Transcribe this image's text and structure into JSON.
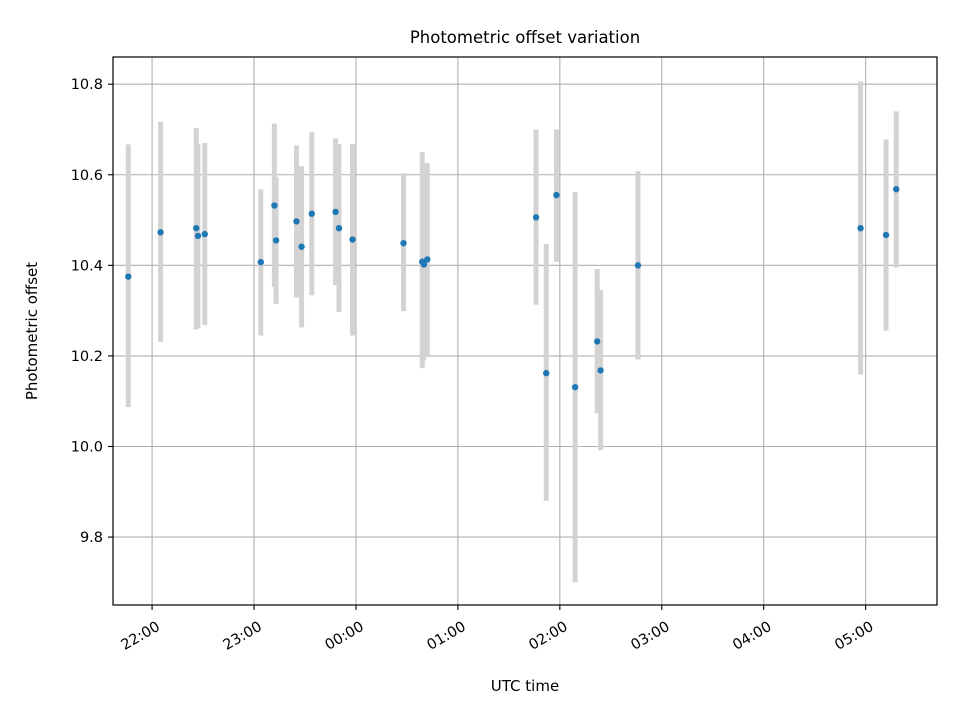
{
  "chart_data": {
    "type": "scatter",
    "title": "Photometric offset variation",
    "xlabel": "UTC time",
    "ylabel": "Photometric offset",
    "xlim": [
      "21:37",
      "05:42"
    ],
    "ylim": [
      9.65,
      10.86
    ],
    "grid": true,
    "legend": "none",
    "x_ticks": [
      "22:00",
      "23:00",
      "00:00",
      "01:00",
      "02:00",
      "03:00",
      "04:00",
      "05:00"
    ],
    "y_ticks": [
      "9.8",
      "10.0",
      "10.2",
      "10.4",
      "10.6",
      "10.8"
    ],
    "colors": {
      "points": "#1f77b4",
      "error_bars": "#d3d3d3",
      "grid": "#b0b0b0"
    },
    "series": [
      {
        "x": [
          "21:46",
          "22:05",
          "22:26",
          "22:27",
          "22:31",
          "23:04",
          "23:12",
          "23:13",
          "23:25",
          "23:28",
          "23:34",
          "23:48",
          "23:50",
          "23:58",
          "00:28",
          "00:39",
          "00:40",
          "00:42",
          "01:46",
          "01:52",
          "01:58",
          "02:09",
          "02:22",
          "02:24",
          "02:46",
          "04:57",
          "05:12",
          "05:18"
        ],
        "y": [
          10.375,
          10.473,
          10.482,
          10.465,
          10.469,
          10.407,
          10.532,
          10.455,
          10.497,
          10.441,
          10.514,
          10.518,
          10.482,
          10.457,
          10.449,
          10.408,
          10.402,
          10.413,
          10.506,
          10.162,
          10.555,
          10.131,
          10.232,
          10.168,
          10.4,
          10.482,
          10.467,
          10.568
        ],
        "yerr_low": [
          10.087,
          10.231,
          10.258,
          10.262,
          10.268,
          10.245,
          10.352,
          10.315,
          10.329,
          10.263,
          10.334,
          10.356,
          10.297,
          10.245,
          10.299,
          10.173,
          10.19,
          10.2,
          10.313,
          9.88,
          10.408,
          9.7,
          10.073,
          9.992,
          10.192,
          10.159,
          10.256,
          10.395
        ],
        "yerr_high": [
          10.667,
          10.717,
          10.703,
          10.668,
          10.67,
          10.568,
          10.713,
          10.595,
          10.665,
          10.619,
          10.694,
          10.68,
          10.668,
          10.668,
          10.603,
          10.65,
          10.62,
          10.626,
          10.7,
          10.447,
          10.7,
          10.562,
          10.392,
          10.345,
          10.608,
          10.806,
          10.678,
          10.74
        ]
      }
    ]
  }
}
